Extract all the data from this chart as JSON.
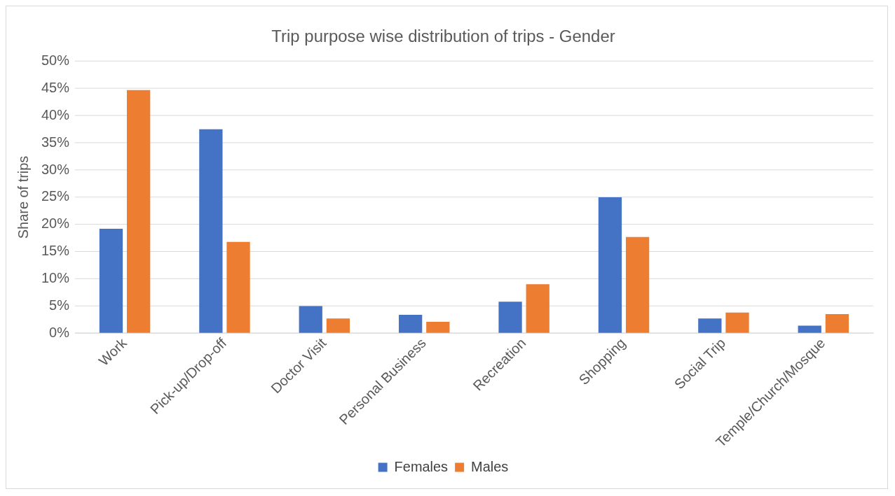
{
  "chart_data": {
    "type": "bar",
    "title": "Trip purpose wise distribution of trips - Gender",
    "ylabel": "Share of trips",
    "categories": [
      "Work",
      "Pick-up/Drop-off",
      "Doctor Visit",
      "Personal Business",
      "Recreation",
      "Shopping",
      "Social Trip",
      "Temple/Church/Mosque"
    ],
    "series": [
      {
        "name": "Females",
        "color": "#4472c4",
        "values": [
          19.2,
          37.5,
          5.0,
          3.4,
          5.8,
          25.0,
          2.7,
          1.4
        ]
      },
      {
        "name": "Males",
        "color": "#ed7d31",
        "values": [
          44.7,
          16.8,
          2.7,
          2.1,
          9.0,
          17.7,
          3.8,
          3.5
        ]
      }
    ],
    "ylim": [
      0,
      50
    ],
    "yticks": [
      {
        "value": 0,
        "label": "0%"
      },
      {
        "value": 5,
        "label": "5%"
      },
      {
        "value": 10,
        "label": "10%"
      },
      {
        "value": 15,
        "label": "15%"
      },
      {
        "value": 20,
        "label": "20%"
      },
      {
        "value": 25,
        "label": "25%"
      },
      {
        "value": 30,
        "label": "30%"
      },
      {
        "value": 35,
        "label": "35%"
      },
      {
        "value": 40,
        "label": "40%"
      },
      {
        "value": 45,
        "label": "45%"
      },
      {
        "value": 50,
        "label": "50%"
      }
    ],
    "grid": "y",
    "legend": "bottom"
  }
}
